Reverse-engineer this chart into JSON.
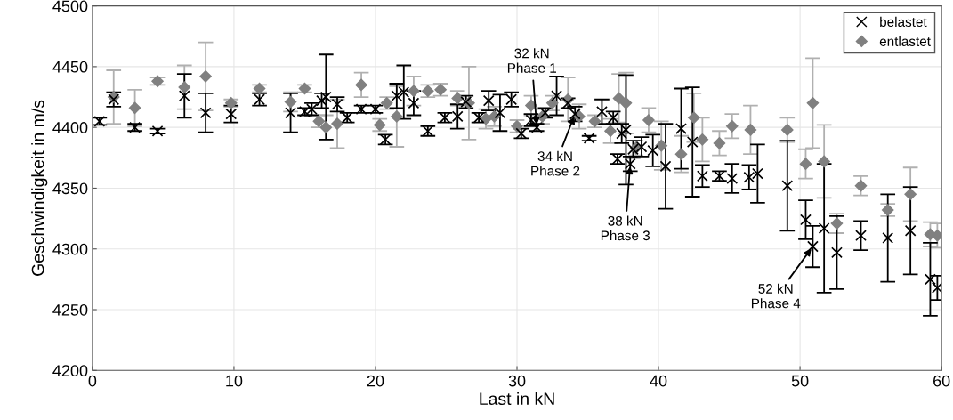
{
  "chart_data": {
    "type": "scatter",
    "xlabel": "Last in kN",
    "ylabel": "Geschwindigkeit in m/s",
    "xlim": [
      0,
      60
    ],
    "ylim": [
      4200,
      4500
    ],
    "xticks": [
      0,
      10,
      20,
      30,
      40,
      50,
      60
    ],
    "yticks": [
      4200,
      4250,
      4300,
      4350,
      4400,
      4450,
      4500
    ],
    "grid": true,
    "legend": "top right",
    "series": [
      {
        "name": "entlastet",
        "color": "#808080",
        "marker": "diamond",
        "x": [
          1.5,
          3,
          4.6,
          6.5,
          8,
          9.8,
          11.8,
          14,
          15,
          16,
          16.5,
          17.3,
          19,
          20.3,
          20.8,
          21.5,
          22.7,
          23.7,
          24.6,
          25.8,
          26.6,
          27.8,
          28.4,
          30,
          31,
          31.8,
          32.5,
          33.6,
          34.4,
          35.5,
          36.6,
          37.2,
          37.7,
          38.4,
          39.3,
          40.2,
          41.6,
          42.5,
          43.1,
          44.3,
          45.2,
          46.5,
          49.1,
          50.4,
          50.9,
          51.7,
          52.6,
          54.3,
          56.2,
          57.8,
          59.2,
          59.7
        ],
        "values": [
          4425,
          4416,
          4438,
          4433,
          4442,
          4420,
          4432,
          4421,
          4432,
          4405,
          4400,
          4403,
          4435,
          4402,
          4420,
          4409,
          4430,
          4430,
          4431,
          4424,
          4420,
          4407,
          4409,
          4401,
          4418,
          4409,
          4420,
          4423,
          4409,
          4405,
          4397,
          4424,
          4420,
          4383,
          4406,
          4385,
          4378,
          4408,
          4390,
          4387,
          4401,
          4398,
          4398,
          4370,
          4420,
          4372,
          4321,
          4352,
          4332,
          4345,
          4312,
          4311
        ],
        "errors": [
          22,
          15,
          3,
          18,
          28,
          3,
          3,
          8,
          3,
          5,
          10,
          20,
          10,
          5,
          5,
          25,
          12,
          5,
          5,
          6,
          30,
          8,
          8,
          5,
          8,
          6,
          6,
          18,
          10,
          5,
          10,
          20,
          25,
          6,
          10,
          20,
          15,
          20,
          18,
          10,
          10,
          20,
          10,
          12,
          37,
          30,
          8,
          8,
          5,
          22,
          10,
          10
        ]
      },
      {
        "name": "belastet",
        "color": "#000000",
        "marker": "cross",
        "x": [
          0.5,
          1.5,
          3,
          4.6,
          6.5,
          8,
          9.8,
          11.8,
          14,
          15,
          15.5,
          16.2,
          16.5,
          17.3,
          18,
          19,
          20,
          20.7,
          21.5,
          22,
          22.7,
          23.7,
          24.9,
          25.8,
          26.4,
          27.3,
          28,
          28.8,
          29.6,
          30.3,
          31,
          31.4,
          32,
          32.8,
          33.6,
          34.1,
          35.1,
          36,
          36.8,
          37.1,
          37.4,
          37.7,
          38,
          38.2,
          38.8,
          39.6,
          40.5,
          41.6,
          42.4,
          43.1,
          44.3,
          45.2,
          46.4,
          47,
          49.1,
          50.4,
          50.9,
          51.7,
          52.6,
          54.3,
          56.2,
          57.8,
          59.2,
          59.7
        ],
        "values": [
          4405,
          4423,
          4400,
          4397,
          4426,
          4412,
          4411,
          4423,
          4412,
          4413,
          4415,
          4422,
          4425,
          4419,
          4408,
          4415,
          4415,
          4390,
          4426,
          4429,
          4420,
          4397,
          4408,
          4409,
          4421,
          4408,
          4422,
          4412,
          4423,
          4395,
          4406,
          4400,
          4412,
          4426,
          4420,
          4411,
          4391,
          4413,
          4408,
          4374,
          4395,
          4398,
          4370,
          4382,
          4384,
          4381,
          4368,
          4399,
          4388,
          4360,
          4360,
          4358,
          4359,
          4362,
          4352,
          4324,
          4302,
          4317,
          4297,
          4311,
          4309,
          4315,
          4275,
          4268
        ],
        "errors": [
          3,
          6,
          3,
          2,
          18,
          16,
          7,
          5,
          16,
          3,
          5,
          6,
          35,
          6,
          4,
          3,
          3,
          4,
          10,
          22,
          10,
          4,
          4,
          10,
          5,
          4,
          8,
          15,
          6,
          4,
          5,
          3,
          4,
          16,
          4,
          6,
          2,
          10,
          5,
          4,
          8,
          45,
          6,
          7,
          8,
          13,
          35,
          33,
          45,
          9,
          4,
          12,
          10,
          24,
          37,
          16,
          17,
          53,
          30,
          12,
          36,
          36,
          30,
          10
        ]
      }
    ],
    "annotations": [
      {
        "text": "32 kN\nPhase 1",
        "x": 31.4,
        "y": 4400
      },
      {
        "text": "34 kN\nPhase 2",
        "x": 34.1,
        "y": 4411
      },
      {
        "text": "38 kN\nPhase 3",
        "x": 38,
        "y": 4370
      },
      {
        "text": "52 kN\nPhase 4",
        "x": 50.9,
        "y": 4302
      }
    ]
  }
}
